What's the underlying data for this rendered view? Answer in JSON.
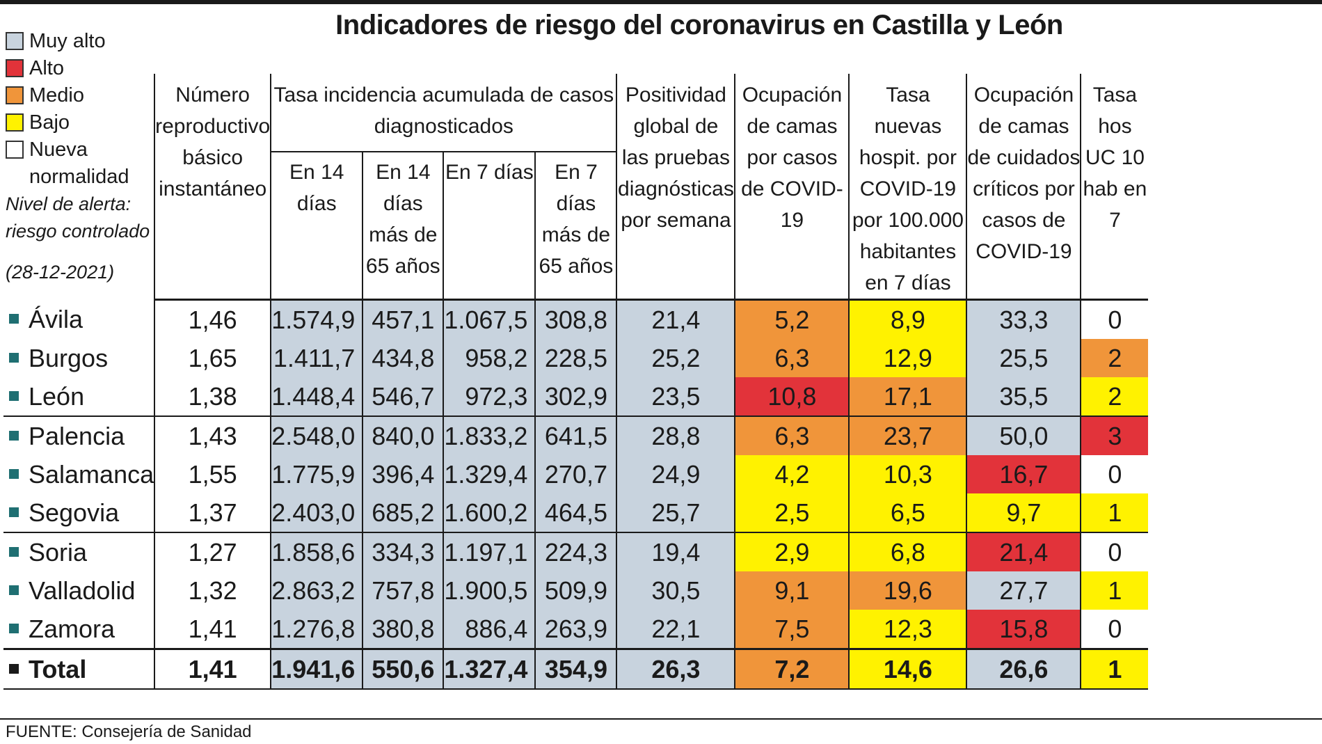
{
  "title": "Indicadores de riesgo del coronavirus en Castilla y León",
  "colors": {
    "muy_alto": "#c8d3de",
    "alto": "#e2333a",
    "medio": "#f0953a",
    "bajo": "#fff200",
    "nueva_normalidad": "#ffffff"
  },
  "legend": {
    "items": [
      "Muy alto",
      "Alto",
      "Medio",
      "Bajo",
      "Nueva normalidad"
    ],
    "note_line1": "Nivel de alerta:",
    "note_line2": "riesgo controlado",
    "date": "(28-12-2021)"
  },
  "headers": {
    "reproductivo": "Número reproductivo básico instantáneo",
    "incidencia_group": "Tasa incidencia acumulada de casos diagnosticados",
    "sub_14": "En 14 días",
    "sub_14_65": "En 14 días más de 65 años",
    "sub_7": "En 7 días",
    "sub_7_65": "En 7 días más de 65 años",
    "positividad": "Positividad global de las pruebas diagnósticas por semana",
    "ocupacion_camas": "Ocupación de camas por casos de COVID-19",
    "tasa_hosp": "Tasa nuevas hospit. por COVID-19 por 100.000 habitantes en 7 días",
    "ocupacion_criticos": "Ocupación de camas de cuidados críticos por casos de COVID-19",
    "tasa_uci": "Tasa hos UC 10 hab en 7"
  },
  "rows": [
    {
      "name": "Ávila",
      "r": "1,46",
      "i14": "1.574,9",
      "i14_65": "457,1",
      "i7": "1.067,5",
      "i7_65": "308,8",
      "pos": "21,4",
      "ocu": "5,2",
      "ocu_lvl": "medio",
      "hosp": "8,9",
      "hosp_lvl": "bajo",
      "crit": "33,3",
      "crit_lvl": "muy_alto",
      "uci": "0",
      "uci_lvl": "nueva_normalidad"
    },
    {
      "name": "Burgos",
      "r": "1,65",
      "i14": "1.411,7",
      "i14_65": "434,8",
      "i7": "958,2",
      "i7_65": "228,5",
      "pos": "25,2",
      "ocu": "6,3",
      "ocu_lvl": "medio",
      "hosp": "12,9",
      "hosp_lvl": "bajo",
      "crit": "25,5",
      "crit_lvl": "muy_alto",
      "uci": "2",
      "uci_lvl": "medio"
    },
    {
      "name": "León",
      "r": "1,38",
      "i14": "1.448,4",
      "i14_65": "546,7",
      "i7": "972,3",
      "i7_65": "302,9",
      "pos": "23,5",
      "ocu": "10,8",
      "ocu_lvl": "alto",
      "hosp": "17,1",
      "hosp_lvl": "medio",
      "crit": "35,5",
      "crit_lvl": "muy_alto",
      "uci": "2",
      "uci_lvl": "bajo"
    },
    {
      "name": "Palencia",
      "r": "1,43",
      "i14": "2.548,0",
      "i14_65": "840,0",
      "i7": "1.833,2",
      "i7_65": "641,5",
      "pos": "28,8",
      "ocu": "6,3",
      "ocu_lvl": "medio",
      "hosp": "23,7",
      "hosp_lvl": "medio",
      "crit": "50,0",
      "crit_lvl": "muy_alto",
      "uci": "3",
      "uci_lvl": "alto"
    },
    {
      "name": "Salamanca",
      "r": "1,55",
      "i14": "1.775,9",
      "i14_65": "396,4",
      "i7": "1.329,4",
      "i7_65": "270,7",
      "pos": "24,9",
      "ocu": "4,2",
      "ocu_lvl": "bajo",
      "hosp": "10,3",
      "hosp_lvl": "bajo",
      "crit": "16,7",
      "crit_lvl": "alto",
      "uci": "0",
      "uci_lvl": "nueva_normalidad"
    },
    {
      "name": "Segovia",
      "r": "1,37",
      "i14": "2.403,0",
      "i14_65": "685,2",
      "i7": "1.600,2",
      "i7_65": "464,5",
      "pos": "25,7",
      "ocu": "2,5",
      "ocu_lvl": "bajo",
      "hosp": "6,5",
      "hosp_lvl": "bajo",
      "crit": "9,7",
      "crit_lvl": "bajo",
      "uci": "1",
      "uci_lvl": "bajo"
    },
    {
      "name": "Soria",
      "r": "1,27",
      "i14": "1.858,6",
      "i14_65": "334,3",
      "i7": "1.197,1",
      "i7_65": "224,3",
      "pos": "19,4",
      "ocu": "2,9",
      "ocu_lvl": "bajo",
      "hosp": "6,8",
      "hosp_lvl": "bajo",
      "crit": "21,4",
      "crit_lvl": "alto",
      "uci": "0",
      "uci_lvl": "nueva_normalidad"
    },
    {
      "name": "Valladolid",
      "r": "1,32",
      "i14": "2.863,2",
      "i14_65": "757,8",
      "i7": "1.900,5",
      "i7_65": "509,9",
      "pos": "30,5",
      "ocu": "9,1",
      "ocu_lvl": "medio",
      "hosp": "19,6",
      "hosp_lvl": "medio",
      "crit": "27,7",
      "crit_lvl": "muy_alto",
      "uci": "1",
      "uci_lvl": "bajo"
    },
    {
      "name": "Zamora",
      "r": "1,41",
      "i14": "1.276,8",
      "i14_65": "380,8",
      "i7": "886,4",
      "i7_65": "263,9",
      "pos": "22,1",
      "ocu": "7,5",
      "ocu_lvl": "medio",
      "hosp": "12,3",
      "hosp_lvl": "bajo",
      "crit": "15,8",
      "crit_lvl": "alto",
      "uci": "0",
      "uci_lvl": "nueva_normalidad"
    }
  ],
  "total": {
    "name": "Total",
    "r": "1,41",
    "i14": "1.941,6",
    "i14_65": "550,6",
    "i7": "1.327,4",
    "i7_65": "354,9",
    "pos": "26,3",
    "ocu": "7,2",
    "ocu_lvl": "medio",
    "hosp": "14,6",
    "hosp_lvl": "bajo",
    "crit": "26,6",
    "crit_lvl": "muy_alto",
    "uci": "1",
    "uci_lvl": "bajo"
  },
  "source": "FUENTE: Consejería de Sanidad"
}
